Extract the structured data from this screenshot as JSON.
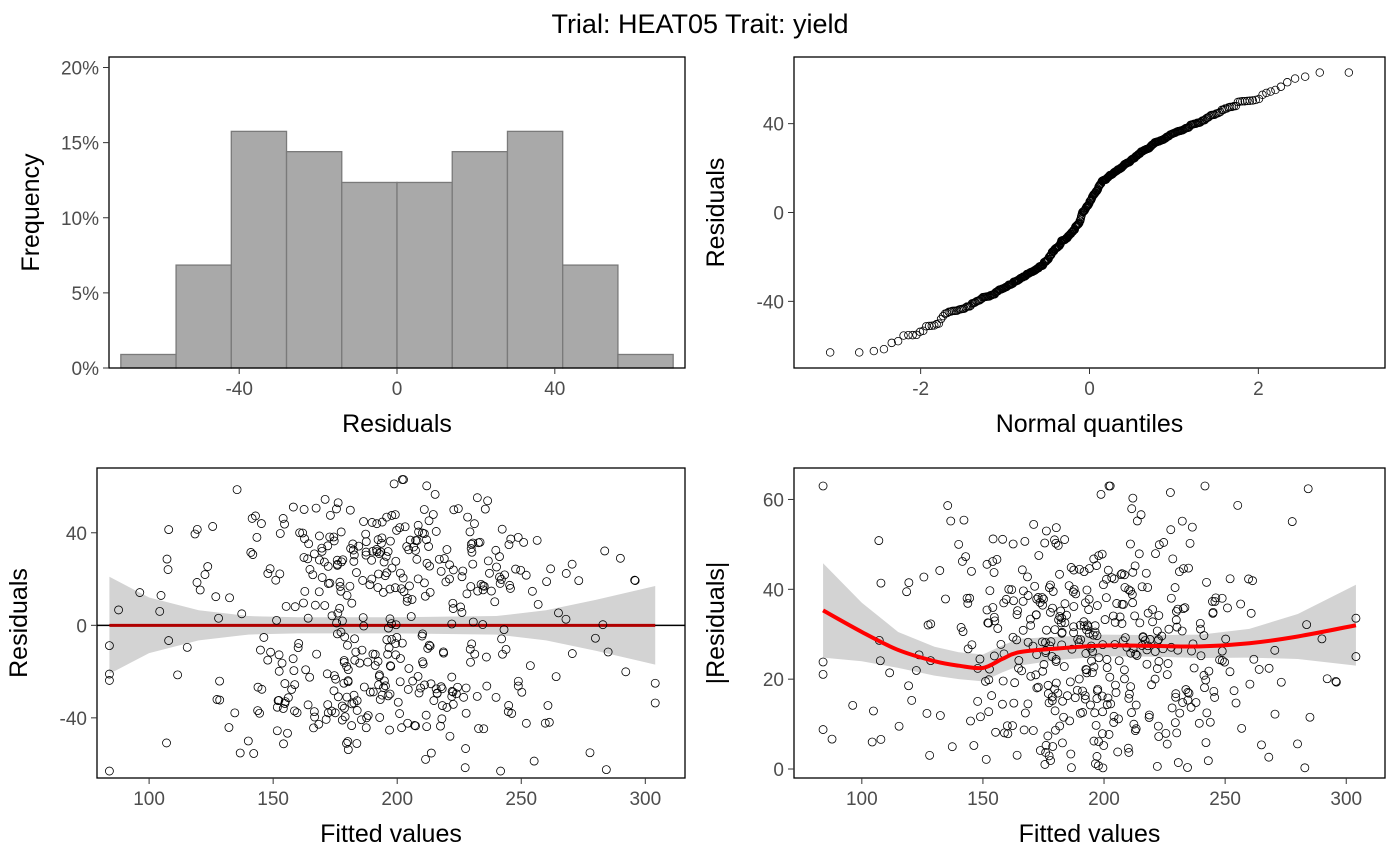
{
  "title": "Trial: HEAT05 Trait: yield",
  "colors": {
    "hist_fill": "#a9a9a9",
    "hist_stroke": "#7a7a7a",
    "point": "#000000",
    "smooth_line": "#ff0000",
    "ribbon": "#d3d3d3",
    "zero_line": "#000000"
  },
  "chart_data": [
    {
      "id": "histogram",
      "type": "bar",
      "xlabel": "Residuals",
      "ylabel": "Frequency",
      "xlim": [
        -73,
        73
      ],
      "ylim": [
        0,
        20.7
      ],
      "xticks": [
        -40,
        0,
        40
      ],
      "xtick_labels": [
        "-40",
        "0",
        "40"
      ],
      "yticks": [
        0,
        5,
        10,
        15,
        20
      ],
      "ytick_labels": [
        "0%",
        "5%",
        "10%",
        "15%",
        "20%"
      ],
      "bin_width": 14,
      "bin_centers": [
        -63,
        -49,
        -35,
        -21,
        -7,
        7,
        21,
        35,
        49,
        63
      ],
      "values": [
        0.9,
        6.85,
        15.75,
        14.4,
        12.35,
        12.35,
        14.4,
        15.75,
        6.85,
        0.9
      ]
    },
    {
      "id": "qq",
      "type": "scatter",
      "xlabel": "Normal quantiles",
      "ylabel": "Residuals",
      "xlim": [
        -3.5,
        3.5
      ],
      "ylim": [
        -70,
        70
      ],
      "xticks": [
        -2,
        0,
        2
      ],
      "xtick_labels": [
        "-2",
        "0",
        "2"
      ],
      "yticks": [
        -40,
        0,
        40
      ],
      "ytick_labels": [
        "-40",
        "0",
        "40"
      ],
      "n_points": 470,
      "residual_range": [
        -63,
        63
      ]
    },
    {
      "id": "residuals-vs-fitted",
      "type": "scatter",
      "xlabel": "Fitted values",
      "ylabel": "Residuals",
      "xlim": [
        79,
        316
      ],
      "ylim": [
        -66,
        68
      ],
      "xticks": [
        100,
        150,
        200,
        250,
        300
      ],
      "xtick_labels": [
        "100",
        "150",
        "200",
        "250",
        "300"
      ],
      "yticks": [
        -40,
        0,
        40
      ],
      "ytick_labels": [
        "-40",
        "0",
        "40"
      ],
      "hline": 0,
      "smooth": {
        "x": [
          84,
          100,
          120,
          140,
          160,
          200,
          240,
          260,
          280,
          304
        ],
        "y": [
          0,
          0,
          0,
          0,
          0,
          0,
          0,
          0,
          0,
          0
        ],
        "se": [
          21,
          12,
          6.5,
          4,
          3.5,
          3.5,
          4,
          6.5,
          11,
          17
        ]
      },
      "n_points": 470
    },
    {
      "id": "abs-residuals-vs-fitted",
      "type": "scatter",
      "xlabel": "Fitted values",
      "ylabel": "|Residuals|",
      "xlim": [
        72,
        316
      ],
      "ylim": [
        -2,
        67
      ],
      "xticks": [
        100,
        150,
        200,
        250,
        300
      ],
      "xtick_labels": [
        "100",
        "150",
        "200",
        "250",
        "300"
      ],
      "yticks": [
        0,
        20,
        40,
        60
      ],
      "ytick_labels": [
        "0",
        "20",
        "40",
        "60"
      ],
      "smooth": {
        "x": [
          84,
          100,
          115,
          130,
          140,
          150,
          158,
          165,
          180,
          200,
          220,
          240,
          260,
          280,
          304
        ],
        "y": [
          35.3,
          30.5,
          26.5,
          24,
          23,
          22.5,
          24.5,
          26,
          26.8,
          27.5,
          27.4,
          27.3,
          28,
          29.5,
          32
        ],
        "se": [
          10.5,
          6.5,
          4,
          3.2,
          3,
          3,
          3,
          3,
          2.6,
          2.4,
          2.4,
          2.6,
          3.2,
          5,
          9
        ]
      },
      "n_points": 470
    }
  ]
}
